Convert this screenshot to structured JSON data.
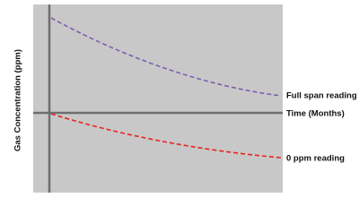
{
  "diagram": {
    "y_axis_label": "Gas Concentration (ppm)",
    "x_axis_label": "Time (Months)",
    "curves": [
      {
        "label": "Full span reading"
      },
      {
        "label": "0 ppm reading"
      }
    ]
  }
}
